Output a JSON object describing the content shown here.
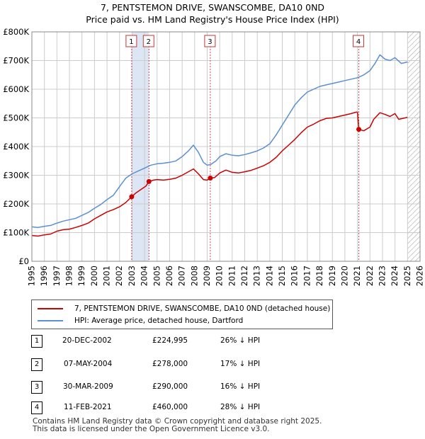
{
  "title_line1": "7, PENTSTEMON DRIVE, SWANSCOMBE, DA10 0ND",
  "title_line2": "Price paid vs. HM Land Registry's House Price Index (HPI)",
  "colors": {
    "price": "#cc0000",
    "hpi": "#5b8fd0",
    "band": "#dde6f5",
    "grid": "#cccccc"
  },
  "chart_data": {
    "type": "line",
    "title": "Price paid vs. HM Land Registry's House Price Index (HPI)",
    "xlabel": "",
    "ylabel": "",
    "xlim": [
      1995,
      2026
    ],
    "ylim": [
      0,
      800000
    ],
    "y_ticks": [
      0,
      100000,
      200000,
      300000,
      400000,
      500000,
      600000,
      700000,
      800000
    ],
    "y_tick_labels": [
      "£0",
      "£100K",
      "£200K",
      "£300K",
      "£400K",
      "£500K",
      "£600K",
      "£700K",
      "£800K"
    ],
    "x_ticks": [
      1995,
      1996,
      1997,
      1998,
      1999,
      2000,
      2001,
      2002,
      2003,
      2004,
      2005,
      2006,
      2007,
      2008,
      2009,
      2010,
      2011,
      2012,
      2013,
      2014,
      2015,
      2016,
      2017,
      2018,
      2019,
      2020,
      2021,
      2022,
      2023,
      2024,
      2025,
      2026
    ],
    "series": [
      {
        "name": "7, PENTSTEMON DRIVE, SWANSCOMBE, DA10 0ND (detached house)",
        "color": "#cc0000",
        "x": [
          1995,
          1995.5,
          1996,
          1996.5,
          1997,
          1997.5,
          1998,
          1998.5,
          1999,
          1999.5,
          2000,
          2000.5,
          2001,
          2001.5,
          2002,
          2002.5,
          2002.97,
          2003.3,
          2003.7,
          2004.1,
          2004.35,
          2004.7,
          2005,
          2005.5,
          2006,
          2006.5,
          2007,
          2007.5,
          2007.9,
          2008.3,
          2008.7,
          2009.0,
          2009.25,
          2009.6,
          2010,
          2010.5,
          2011,
          2011.5,
          2012,
          2012.5,
          2013,
          2013.5,
          2014,
          2014.5,
          2015,
          2015.5,
          2016,
          2016.5,
          2017,
          2017.5,
          2018,
          2018.5,
          2019,
          2019.5,
          2020,
          2020.5,
          2020.9,
          2021.0,
          2021.11,
          2021.5,
          2022,
          2022.3,
          2022.8,
          2023.2,
          2023.6,
          2024,
          2024.3,
          2024.8,
          2025.0
        ],
        "y": [
          90000,
          88000,
          92000,
          95000,
          105000,
          110000,
          112000,
          118000,
          125000,
          133000,
          148000,
          160000,
          172000,
          180000,
          190000,
          205000,
          224995,
          238000,
          250000,
          262000,
          278000,
          283000,
          285000,
          283000,
          286000,
          290000,
          300000,
          312000,
          322000,
          305000,
          285000,
          283000,
          290000,
          292000,
          308000,
          318000,
          310000,
          308000,
          312000,
          317000,
          325000,
          333000,
          345000,
          362000,
          385000,
          405000,
          425000,
          448000,
          468000,
          478000,
          490000,
          498000,
          500000,
          505000,
          510000,
          515000,
          520000,
          520000,
          460000,
          455000,
          468000,
          495000,
          518000,
          512000,
          505000,
          515000,
          495000,
          500000,
          502000
        ]
      },
      {
        "name": "HPI: Average price, detached house, Dartford",
        "color": "#5b8fd0",
        "x": [
          1995,
          1995.5,
          1996,
          1996.5,
          1997,
          1997.5,
          1998,
          1998.5,
          1999,
          1999.5,
          2000,
          2000.5,
          2001,
          2001.5,
          2002,
          2002.5,
          2003,
          2003.5,
          2004,
          2004.5,
          2005,
          2005.5,
          2006,
          2006.5,
          2007,
          2007.5,
          2007.9,
          2008.3,
          2008.7,
          2009.0,
          2009.3,
          2009.7,
          2010,
          2010.5,
          2011,
          2011.5,
          2012,
          2012.5,
          2013,
          2013.5,
          2014,
          2014.5,
          2015,
          2015.5,
          2016,
          2016.5,
          2017,
          2017.5,
          2018,
          2018.5,
          2019,
          2019.5,
          2020,
          2020.5,
          2021,
          2021.5,
          2022,
          2022.4,
          2022.8,
          2023.2,
          2023.6,
          2024,
          2024.5,
          2025.0
        ],
        "y": [
          120000,
          118000,
          122000,
          125000,
          133000,
          140000,
          145000,
          150000,
          160000,
          170000,
          185000,
          198000,
          215000,
          230000,
          260000,
          290000,
          305000,
          315000,
          325000,
          335000,
          340000,
          342000,
          345000,
          350000,
          365000,
          385000,
          405000,
          380000,
          345000,
          335000,
          338000,
          350000,
          365000,
          375000,
          370000,
          368000,
          372000,
          378000,
          385000,
          395000,
          410000,
          440000,
          475000,
          510000,
          545000,
          570000,
          590000,
          600000,
          610000,
          615000,
          620000,
          625000,
          630000,
          635000,
          640000,
          650000,
          665000,
          690000,
          720000,
          705000,
          700000,
          710000,
          690000,
          695000
        ]
      }
    ],
    "sales": [
      {
        "id": "1",
        "x": 2002.97,
        "y": 224995
      },
      {
        "id": "2",
        "x": 2004.35,
        "y": 278000
      },
      {
        "id": "3",
        "x": 2009.25,
        "y": 290000
      },
      {
        "id": "4",
        "x": 2021.11,
        "y": 460000
      }
    ],
    "shaded_bands": [
      [
        2002.97,
        2004.35
      ]
    ],
    "hatched_from": 2025.0
  },
  "legend": {
    "price_label": "7, PENTSTEMON DRIVE, SWANSCOMBE, DA10 0ND (detached house)",
    "hpi_label": "HPI: Average price, detached house, Dartford"
  },
  "transactions": [
    {
      "num": "1",
      "date": "20-DEC-2002",
      "price": "£224,995",
      "hpi": "26% ↓ HPI"
    },
    {
      "num": "2",
      "date": "07-MAY-2004",
      "price": "£278,000",
      "hpi": "17% ↓ HPI"
    },
    {
      "num": "3",
      "date": "30-MAR-2009",
      "price": "£290,000",
      "hpi": "16% ↓ HPI"
    },
    {
      "num": "4",
      "date": "11-FEB-2021",
      "price": "£460,000",
      "hpi": "28% ↓ HPI"
    }
  ],
  "footer_line1": "Contains HM Land Registry data © Crown copyright and database right 2025.",
  "footer_line2": "This data is licensed under the Open Government Licence v3.0."
}
